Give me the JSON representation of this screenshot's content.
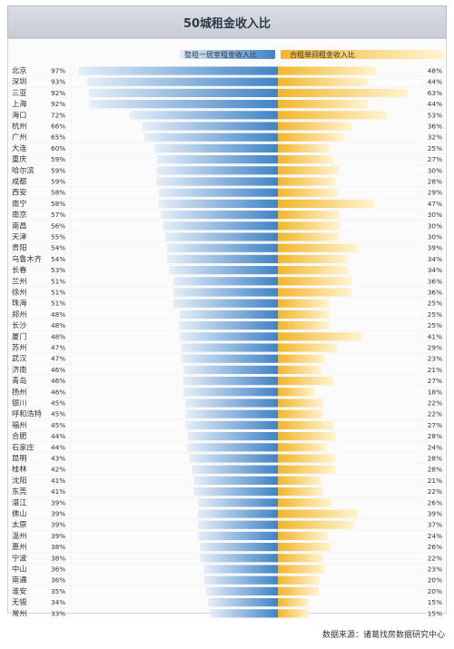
{
  "page": {
    "title": "50城租金收入比",
    "source_text": "数据来源：诸葛找房数据研究中心"
  },
  "chart_data": {
    "type": "bar",
    "title": "50城租金收入比",
    "legend": {
      "left_label": "整租一居室租金收入比",
      "right_label": "合租单间租金收入比",
      "placement": "top"
    },
    "categories": [
      "北京",
      "深圳",
      "三亚",
      "上海",
      "海口",
      "杭州",
      "广州",
      "大连",
      "重庆",
      "哈尔滨",
      "成都",
      "西安",
      "南宁",
      "南京",
      "南昌",
      "天津",
      "贵阳",
      "乌鲁木齐",
      "长春",
      "兰州",
      "徐州",
      "珠海",
      "郑州",
      "长沙",
      "厦门",
      "苏州",
      "武汉",
      "济南",
      "青岛",
      "扬州",
      "银川",
      "呼和浩特",
      "福州",
      "合肥",
      "石家庄",
      "昆明",
      "桂林",
      "沈阳",
      "东莞",
      "湛江",
      "佛山",
      "太原",
      "温州",
      "惠州",
      "宁波",
      "中山",
      "南通",
      "淮安",
      "无锡",
      "常州"
    ],
    "series": [
      {
        "name": "整租一居室租金收入比",
        "values": [
          97,
          93,
          92,
          92,
          72,
          66,
          65,
          60,
          59,
          59,
          59,
          58,
          58,
          57,
          56,
          55,
          54,
          54,
          53,
          51,
          51,
          51,
          48,
          48,
          48,
          47,
          47,
          46,
          46,
          46,
          45,
          45,
          45,
          44,
          44,
          43,
          42,
          41,
          41,
          39,
          39,
          39,
          39,
          38,
          38,
          36,
          36,
          35,
          34,
          33
        ]
      },
      {
        "name": "合租单间租金收入比",
        "values": [
          48,
          44,
          63,
          44,
          53,
          36,
          32,
          25,
          27,
          30,
          28,
          29,
          47,
          30,
          30,
          30,
          39,
          34,
          34,
          36,
          36,
          25,
          25,
          25,
          41,
          29,
          23,
          21,
          27,
          18,
          22,
          22,
          27,
          28,
          24,
          28,
          28,
          21,
          22,
          26,
          39,
          37,
          24,
          26,
          22,
          23,
          20,
          20,
          15,
          15
        ]
      }
    ],
    "colors": {
      "left_bar_light": "#e6eef8",
      "left_bar_dark": "#3f83c6",
      "right_bar_light": "#fff4d2",
      "right_bar_dark": "#f1b62a",
      "center_line": "#ffffff",
      "grid": "#e3e6ea",
      "text": "#333333"
    },
    "xlim_left": [
      0,
      100
    ],
    "xlim_right": [
      0,
      100
    ],
    "grid": false
  }
}
